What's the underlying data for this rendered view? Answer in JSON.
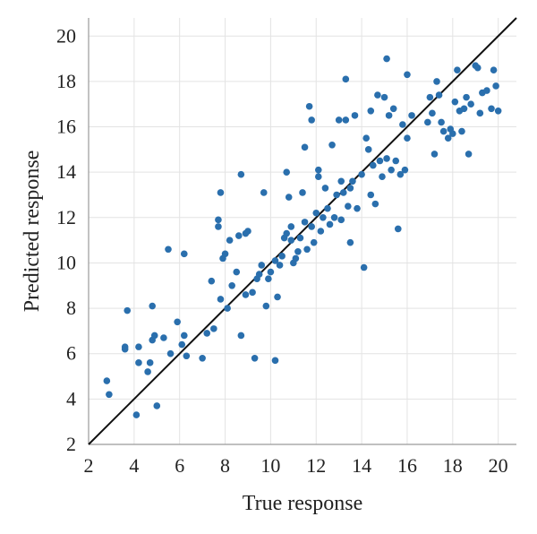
{
  "chart_data": {
    "type": "scatter",
    "xlabel": "True response",
    "ylabel": "Predicted response",
    "xlim": [
      2,
      20.8
    ],
    "ylim": [
      2,
      20.8
    ],
    "xticks": [
      2,
      4,
      6,
      8,
      10,
      12,
      14,
      16,
      18,
      20
    ],
    "yticks": [
      2,
      4,
      6,
      8,
      10,
      12,
      14,
      16,
      18,
      20
    ],
    "grid": true,
    "reference_line": {
      "from": [
        2,
        2
      ],
      "to": [
        20.8,
        20.8
      ]
    },
    "colors": {
      "points": "#2a6fad",
      "line": "#111111",
      "grid": "#e3e3e3"
    },
    "points": [
      [
        2.8,
        4.8
      ],
      [
        2.9,
        4.2
      ],
      [
        3.6,
        6.2
      ],
      [
        3.7,
        7.9
      ],
      [
        3.6,
        6.3
      ],
      [
        4.1,
        3.3
      ],
      [
        4.2,
        5.6
      ],
      [
        4.2,
        6.3
      ],
      [
        4.6,
        5.2
      ],
      [
        4.7,
        5.6
      ],
      [
        4.8,
        6.6
      ],
      [
        4.8,
        8.1
      ],
      [
        4.9,
        6.8
      ],
      [
        5.0,
        3.7
      ],
      [
        5.3,
        6.7
      ],
      [
        5.5,
        10.6
      ],
      [
        5.6,
        6.0
      ],
      [
        5.9,
        7.4
      ],
      [
        6.1,
        6.4
      ],
      [
        6.2,
        6.8
      ],
      [
        6.2,
        10.4
      ],
      [
        6.3,
        5.9
      ],
      [
        7.0,
        5.8
      ],
      [
        7.2,
        6.9
      ],
      [
        7.4,
        9.2
      ],
      [
        7.5,
        7.1
      ],
      [
        7.7,
        11.9
      ],
      [
        7.7,
        11.6
      ],
      [
        7.8,
        13.1
      ],
      [
        7.8,
        8.4
      ],
      [
        7.9,
        10.2
      ],
      [
        8.0,
        10.4
      ],
      [
        8.1,
        8.0
      ],
      [
        8.2,
        11.0
      ],
      [
        8.3,
        9.0
      ],
      [
        8.5,
        9.6
      ],
      [
        8.6,
        11.2
      ],
      [
        8.7,
        13.9
      ],
      [
        8.7,
        6.8
      ],
      [
        8.9,
        11.3
      ],
      [
        8.9,
        8.6
      ],
      [
        9.0,
        11.4
      ],
      [
        9.2,
        8.7
      ],
      [
        9.3,
        5.8
      ],
      [
        9.4,
        9.3
      ],
      [
        9.5,
        9.5
      ],
      [
        9.6,
        9.9
      ],
      [
        9.7,
        13.1
      ],
      [
        9.8,
        8.1
      ],
      [
        9.9,
        9.3
      ],
      [
        10.0,
        9.6
      ],
      [
        10.2,
        10.1
      ],
      [
        10.2,
        5.7
      ],
      [
        10.3,
        8.5
      ],
      [
        10.4,
        9.9
      ],
      [
        10.5,
        10.3
      ],
      [
        10.6,
        11.1
      ],
      [
        10.7,
        14.0
      ],
      [
        10.7,
        11.3
      ],
      [
        10.8,
        12.9
      ],
      [
        10.9,
        11.0
      ],
      [
        10.9,
        11.6
      ],
      [
        11.0,
        10.0
      ],
      [
        11.1,
        10.2
      ],
      [
        11.2,
        10.5
      ],
      [
        11.3,
        11.1
      ],
      [
        11.4,
        13.1
      ],
      [
        11.5,
        15.1
      ],
      [
        11.5,
        11.8
      ],
      [
        11.6,
        10.6
      ],
      [
        11.7,
        16.9
      ],
      [
        11.8,
        16.3
      ],
      [
        11.8,
        11.6
      ],
      [
        11.9,
        10.9
      ],
      [
        12.0,
        12.2
      ],
      [
        12.1,
        14.1
      ],
      [
        12.1,
        13.8
      ],
      [
        12.2,
        11.4
      ],
      [
        12.3,
        12.0
      ],
      [
        12.4,
        13.3
      ],
      [
        12.5,
        12.4
      ],
      [
        12.6,
        11.7
      ],
      [
        12.7,
        15.2
      ],
      [
        12.8,
        12.0
      ],
      [
        12.9,
        13.0
      ],
      [
        13.0,
        16.3
      ],
      [
        13.1,
        13.6
      ],
      [
        13.1,
        11.9
      ],
      [
        13.2,
        13.1
      ],
      [
        13.3,
        18.1
      ],
      [
        13.3,
        16.3
      ],
      [
        13.4,
        12.5
      ],
      [
        13.5,
        13.3
      ],
      [
        13.5,
        10.9
      ],
      [
        13.6,
        13.6
      ],
      [
        13.7,
        16.5
      ],
      [
        13.8,
        12.4
      ],
      [
        14.0,
        13.9
      ],
      [
        14.1,
        9.8
      ],
      [
        14.2,
        15.5
      ],
      [
        14.3,
        15.0
      ],
      [
        14.4,
        16.7
      ],
      [
        14.4,
        13.0
      ],
      [
        14.5,
        14.3
      ],
      [
        14.6,
        12.6
      ],
      [
        14.7,
        17.4
      ],
      [
        14.8,
        14.5
      ],
      [
        14.9,
        13.8
      ],
      [
        15.0,
        17.3
      ],
      [
        15.1,
        19.0
      ],
      [
        15.1,
        14.6
      ],
      [
        15.2,
        16.5
      ],
      [
        15.3,
        14.1
      ],
      [
        15.4,
        16.8
      ],
      [
        15.5,
        14.5
      ],
      [
        15.6,
        11.5
      ],
      [
        15.7,
        13.9
      ],
      [
        15.8,
        16.1
      ],
      [
        15.9,
        14.1
      ],
      [
        16.0,
        18.3
      ],
      [
        16.0,
        15.5
      ],
      [
        16.2,
        16.5
      ],
      [
        16.9,
        16.2
      ],
      [
        17.0,
        17.3
      ],
      [
        17.1,
        16.6
      ],
      [
        17.2,
        14.8
      ],
      [
        17.3,
        18.0
      ],
      [
        17.4,
        17.4
      ],
      [
        17.5,
        16.2
      ],
      [
        17.6,
        15.8
      ],
      [
        17.8,
        15.5
      ],
      [
        17.9,
        15.9
      ],
      [
        18.0,
        15.7
      ],
      [
        18.1,
        17.1
      ],
      [
        18.2,
        18.5
      ],
      [
        18.3,
        16.7
      ],
      [
        18.4,
        15.8
      ],
      [
        18.5,
        16.8
      ],
      [
        18.6,
        17.3
      ],
      [
        18.7,
        14.8
      ],
      [
        18.8,
        17.0
      ],
      [
        19.0,
        18.7
      ],
      [
        19.1,
        18.6
      ],
      [
        19.2,
        16.6
      ],
      [
        19.3,
        17.5
      ],
      [
        19.5,
        17.6
      ],
      [
        19.7,
        16.8
      ],
      [
        19.8,
        18.5
      ],
      [
        19.9,
        17.8
      ],
      [
        20.0,
        16.7
      ]
    ]
  }
}
